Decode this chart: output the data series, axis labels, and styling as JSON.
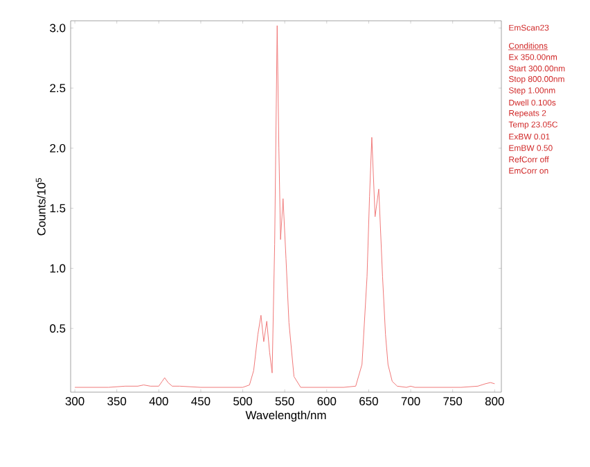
{
  "chart_data": {
    "type": "line",
    "xlabel": "Wavelength/nm",
    "ylabel": "Counts/10$^{5}$",
    "xlim": [
      295,
      808
    ],
    "ylim": [
      -0.03,
      3.06
    ],
    "xticks": [
      300,
      350,
      400,
      450,
      500,
      550,
      600,
      650,
      700,
      750,
      800
    ],
    "yticks": [
      0.5,
      {
        "value": 1.0,
        "label": "1.0"
      },
      1.5,
      {
        "value": 2.0,
        "label": "2.0"
      },
      2.5,
      {
        "value": 3.0,
        "label": "3.0"
      }
    ],
    "series": [
      {
        "color": "#f07878",
        "x": [
          300,
          320,
          340,
          360,
          375,
          382,
          390,
          400,
          404,
          407,
          411,
          416,
          425,
          450,
          480,
          500,
          508,
          513,
          518,
          521.7,
          525,
          528.6,
          532,
          535,
          538,
          541,
          543,
          545,
          548,
          551.5,
          555,
          561,
          569,
          580,
          600,
          620,
          634.5,
          642,
          648,
          651,
          653.7,
          657.6,
          662,
          666.5,
          670,
          673,
          678,
          684,
          695,
          700,
          705,
          730,
          760,
          780,
          789,
          795,
          800
        ],
        "values": [
          0.01,
          0.01,
          0.01,
          0.02,
          0.02,
          0.03,
          0.02,
          0.02,
          0.06,
          0.09,
          0.05,
          0.02,
          0.02,
          0.01,
          0.01,
          0.01,
          0.03,
          0.15,
          0.45,
          0.61,
          0.39,
          0.56,
          0.3,
          0.13,
          1.2,
          3.02,
          2.0,
          1.24,
          1.58,
          1.08,
          0.55,
          0.1,
          0.01,
          0.01,
          0.01,
          0.01,
          0.02,
          0.2,
          0.93,
          1.6,
          2.09,
          1.43,
          1.66,
          0.93,
          0.45,
          0.2,
          0.06,
          0.02,
          0.01,
          0.02,
          0.01,
          0.01,
          0.01,
          0.02,
          0.04,
          0.05,
          0.04
        ]
      }
    ],
    "annotations": [
      "EmScan23",
      "Conditions",
      "Ex 350.00nm",
      "Start 300.00nm",
      "Stop 800.00nm",
      "Step 1.00nm",
      "Dwell 0.100s",
      "Repeats 2",
      "Temp 23.05C",
      "ExBW 0.01",
      "EmBW 0.50",
      "RefCorr off",
      "EmCorr on"
    ]
  }
}
